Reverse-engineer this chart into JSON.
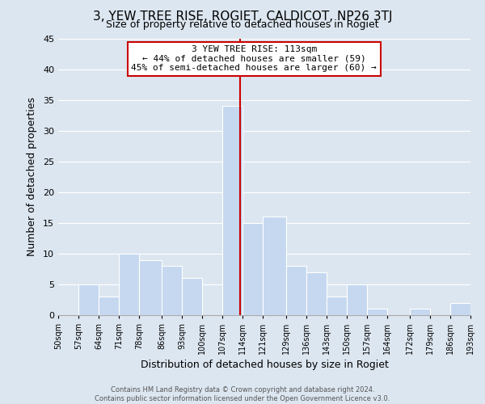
{
  "title": "3, YEW TREE RISE, ROGIET, CALDICOT, NP26 3TJ",
  "subtitle": "Size of property relative to detached houses in Rogiet",
  "xlabel": "Distribution of detached houses by size in Rogiet",
  "ylabel": "Number of detached properties",
  "footer_line1": "Contains HM Land Registry data © Crown copyright and database right 2024.",
  "footer_line2": "Contains public sector information licensed under the Open Government Licence v3.0.",
  "bar_edges": [
    50,
    57,
    64,
    71,
    78,
    86,
    93,
    100,
    107,
    114,
    121,
    129,
    136,
    143,
    150,
    157,
    164,
    172,
    179,
    186,
    193
  ],
  "bar_heights": [
    0,
    5,
    3,
    10,
    9,
    8,
    6,
    0,
    34,
    15,
    16,
    8,
    7,
    3,
    5,
    1,
    0,
    1,
    0,
    2
  ],
  "tick_labels": [
    "50sqm",
    "57sqm",
    "64sqm",
    "71sqm",
    "78sqm",
    "86sqm",
    "93sqm",
    "100sqm",
    "107sqm",
    "114sqm",
    "121sqm",
    "129sqm",
    "136sqm",
    "143sqm",
    "150sqm",
    "157sqm",
    "164sqm",
    "172sqm",
    "179sqm",
    "186sqm",
    "193sqm"
  ],
  "bar_color": "#c5d8f0",
  "bar_edge_color": "#ffffff",
  "vline_x": 113,
  "vline_color": "#cc0000",
  "annotation_title": "3 YEW TREE RISE: 113sqm",
  "annotation_line1": "← 44% of detached houses are smaller (59)",
  "annotation_line2": "45% of semi-detached houses are larger (60) →",
  "annotation_box_color": "#ffffff",
  "annotation_border_color": "#cc0000",
  "ylim": [
    0,
    45
  ],
  "yticks": [
    0,
    5,
    10,
    15,
    20,
    25,
    30,
    35,
    40,
    45
  ],
  "bg_color": "#dce6f0",
  "plot_bg_color": "#dce6f0",
  "title_fontsize": 11,
  "subtitle_fontsize": 9,
  "grid_color": "#ffffff",
  "spine_color": "#aaaaaa"
}
